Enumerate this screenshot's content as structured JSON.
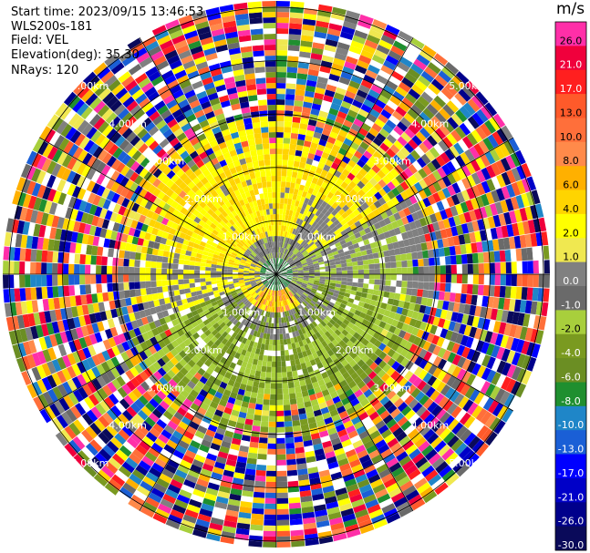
{
  "header": {
    "lines": [
      "Start time: 2023/09/15 13:46:53",
      "WLS200s-181",
      "Field: VEL",
      "Elevation(deg): 35.30",
      "NRays: 120"
    ]
  },
  "colorbar": {
    "unit": "m/s",
    "bands": [
      {
        "label": "26.0",
        "color": "#ff2fa8"
      },
      {
        "label": "21.0",
        "color": "#f0003c"
      },
      {
        "label": "17.0",
        "color": "#ff1f1f"
      },
      {
        "label": "13.0",
        "color": "#ff5a2a"
      },
      {
        "label": "10.0",
        "color": "#ff6f3a"
      },
      {
        "label": "8.0",
        "color": "#ff8a4a"
      },
      {
        "label": "6.0",
        "color": "#ffb000"
      },
      {
        "label": "4.0",
        "color": "#ffd400"
      },
      {
        "label": "2.0",
        "color": "#ffff00"
      },
      {
        "label": "1.0",
        "color": "#f0e850"
      },
      {
        "label": "0.0",
        "color": "#808080"
      },
      {
        "label": "-1.0",
        "color": "#6a6a6a"
      },
      {
        "label": "-2.0",
        "color": "#a8cf3c"
      },
      {
        "label": "-4.0",
        "color": "#7a9a20"
      },
      {
        "label": "-6.0",
        "color": "#6b8e23"
      },
      {
        "label": "-8.0",
        "color": "#1f8f2f"
      },
      {
        "label": "-10.0",
        "color": "#1f86c8"
      },
      {
        "label": "-13.0",
        "color": "#1a5fd6"
      },
      {
        "label": "-17.0",
        "color": "#0000ff"
      },
      {
        "label": "-21.0",
        "color": "#0000c8"
      },
      {
        "label": "-26.0",
        "color": "#00008b"
      },
      {
        "label": "-30.0",
        "color": "#0a0a5a"
      }
    ]
  },
  "ring_labels": [
    "1.00km",
    "2.00km",
    "3.00km",
    "4.00km",
    "5.00km"
  ],
  "chart_data": {
    "type": "heatmap",
    "projection": "polar-ppi",
    "field": "VEL",
    "n_rays": 120,
    "elevation_deg": 35.3,
    "range_rings_km": [
      1,
      2,
      3,
      4,
      5
    ],
    "spokes_deg": [
      0,
      30,
      60,
      90,
      120,
      150,
      180,
      210,
      240,
      270,
      300,
      330
    ],
    "value_range": [
      -30.0,
      26.0
    ],
    "grid": true,
    "legend": "right"
  }
}
